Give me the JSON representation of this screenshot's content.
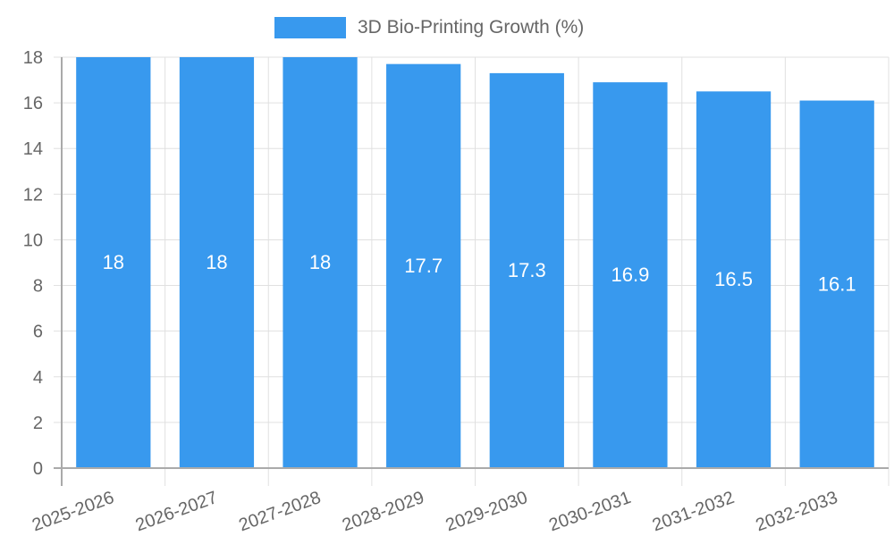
{
  "legend": {
    "label": "3D Bio-Printing Growth (%)",
    "color": "#3899ee"
  },
  "chart_data": {
    "type": "bar",
    "title": "",
    "xlabel": "",
    "ylabel": "",
    "categories": [
      "2025-2026",
      "2026-2027",
      "2027-2028",
      "2028-2029",
      "2029-2030",
      "2030-2031",
      "2031-2032",
      "2032-2033"
    ],
    "series": [
      {
        "name": "3D Bio-Printing Growth (%)",
        "values": [
          18,
          18,
          18,
          17.7,
          17.3,
          16.9,
          16.5,
          16.1
        ],
        "color": "#3899ee"
      }
    ],
    "ylim": [
      0,
      18
    ],
    "yticks": [
      0,
      2,
      4,
      6,
      8,
      10,
      12,
      14,
      16,
      18
    ],
    "grid": true,
    "legend_position": "top",
    "data_labels": true
  }
}
